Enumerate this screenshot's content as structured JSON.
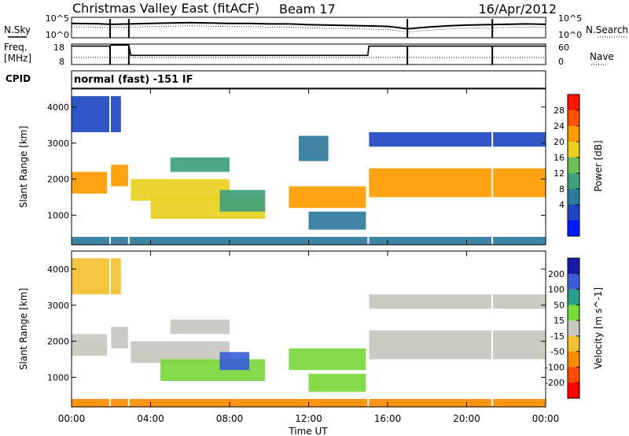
{
  "header": {
    "title": "Christmas Valley East (fitACF)",
    "beam": "Beam 17",
    "date": "16/Apr/2012",
    "mode": "normal (fast) -151 IF"
  },
  "side_labels": {
    "nsky": "N.Sky",
    "nsky_ticks": [
      "10^5",
      "10^0"
    ],
    "nsearch": "N.Search",
    "nsearch_ticks": [
      "10^5",
      "10^0"
    ],
    "freq_l1": "Freq.",
    "freq_l2": "[MHz]",
    "freq_ticks": [
      "18",
      "8"
    ],
    "nave": "Nave",
    "nave_ticks": [
      "60",
      "0"
    ],
    "cpid": "CPID"
  },
  "colors": {
    "power_scale": [
      "#0018ff",
      "#1f46c0",
      "#2f7a9a",
      "#3fa07a",
      "#6cbf55",
      "#e8d020",
      "#ff9a00",
      "#ff5500",
      "#ff1500"
    ],
    "velocity_scale": [
      "#1a1aa8",
      "#3b5ed8",
      "#2c9c8c",
      "#7ad83a",
      "#c8c8c0",
      "#f2c030",
      "#ff8c00",
      "#ff4a00",
      "#ff0000"
    ]
  },
  "chart_data": [
    {
      "type": "line",
      "name": "sky-noise",
      "x_unit": "hours UT",
      "x": [
        0,
        1.5,
        2,
        3,
        4,
        5,
        6,
        7,
        8,
        9,
        10,
        11,
        12,
        13,
        14,
        15,
        16,
        17,
        18,
        19,
        20,
        21,
        22,
        23,
        24
      ],
      "series": [
        {
          "values": [
            3.5,
            3.4,
            3.3,
            3.4,
            3.5,
            3.6,
            3.7,
            3.6,
            3.5,
            3.5,
            3.4,
            3.4,
            3.2,
            3.1,
            3.0,
            2.9,
            2.8,
            2.2,
            2.6,
            2.9,
            3.1,
            3.2,
            3.3,
            3.4,
            3.3
          ]
        }
      ],
      "ylim": [
        0,
        5
      ],
      "y_ticks": [
        "10^0",
        "10^5"
      ]
    },
    {
      "type": "line",
      "name": "frequency-nave",
      "x": [
        0,
        1.95,
        2.0,
        2.9,
        3.0,
        15.0,
        15.05,
        24
      ],
      "series": [
        {
          "values": [
            17,
            17,
            17.5,
            17.5,
            12.5,
            12.5,
            17,
            17
          ]
        }
      ],
      "ylim": [
        8,
        18
      ],
      "y_ticks": [
        "8",
        "18"
      ]
    },
    {
      "type": "heatmap",
      "name": "power",
      "xlabel": "",
      "ylabel": "Slant Range [km]",
      "colorbar_label": "Power [dB]",
      "xlim": [
        0,
        24
      ],
      "ylim": [
        180,
        4500
      ],
      "y_ticks": [
        1000,
        2000,
        3000,
        4000
      ],
      "colorbar_ticks": [
        "28",
        "24",
        "20",
        "16",
        "12",
        "8",
        "4"
      ],
      "colorbar_range": [
        0,
        32
      ],
      "regions": [
        {
          "t0": 0.0,
          "t1": 1.8,
          "r0": 1600,
          "r1": 2200,
          "level": 22
        },
        {
          "t0": 2.0,
          "t1": 2.9,
          "r0": 1800,
          "r1": 2400,
          "level": 24
        },
        {
          "t0": 3.0,
          "t1": 8.0,
          "r0": 1400,
          "r1": 2000,
          "level": 18
        },
        {
          "t0": 5.0,
          "t1": 8.0,
          "r0": 2200,
          "r1": 2600,
          "level": 14
        },
        {
          "t0": 4.0,
          "t1": 9.8,
          "r0": 900,
          "r1": 1500,
          "level": 20
        },
        {
          "t0": 7.5,
          "t1": 9.8,
          "r0": 1100,
          "r1": 1700,
          "level": 12
        },
        {
          "t0": 11.0,
          "t1": 14.9,
          "r0": 1200,
          "r1": 1800,
          "level": 22
        },
        {
          "t0": 12.0,
          "t1": 14.9,
          "r0": 600,
          "r1": 1100,
          "level": 10
        },
        {
          "t0": 11.5,
          "t1": 13.0,
          "r0": 2500,
          "r1": 3200,
          "level": 8
        },
        {
          "t0": 15.0,
          "t1": 24.0,
          "r0": 1500,
          "r1": 2300,
          "level": 22
        },
        {
          "t0": 15.0,
          "t1": 24.0,
          "r0": 2900,
          "r1": 3300,
          "level": 6
        },
        {
          "t0": 0.0,
          "t1": 2.5,
          "r0": 3300,
          "r1": 4300,
          "level": 7
        },
        {
          "t0": 0.0,
          "t1": 24.0,
          "r0": 180,
          "r1": 400,
          "level": 10
        }
      ]
    },
    {
      "type": "heatmap",
      "name": "velocity",
      "xlabel": "Time UT",
      "ylabel": "Slant Range [km]",
      "colorbar_label": "Velocity [m s^-1]",
      "xlim": [
        0,
        24
      ],
      "ylim": [
        180,
        4500
      ],
      "x_ticks": [
        "00:00",
        "04:00",
        "08:00",
        "12:00",
        "16:00",
        "20:00",
        "00:00"
      ],
      "y_ticks": [
        1000,
        2000,
        3000,
        4000
      ],
      "colorbar_ticks": [
        "200",
        "100",
        "50",
        "15",
        "-15",
        "-50",
        "-100",
        "-200"
      ],
      "regions": [
        {
          "t0": 0.0,
          "t1": 1.8,
          "r0": 1600,
          "r1": 2200,
          "level": 0
        },
        {
          "t0": 2.0,
          "t1": 2.9,
          "r0": 1800,
          "r1": 2400,
          "level": 0
        },
        {
          "t0": 3.0,
          "t1": 8.0,
          "r0": 1400,
          "r1": 2000,
          "level": 0
        },
        {
          "t0": 5.0,
          "t1": 8.0,
          "r0": 2200,
          "r1": 2600,
          "level": 0
        },
        {
          "t0": 4.5,
          "t1": 9.8,
          "r0": 900,
          "r1": 1500,
          "level": 35
        },
        {
          "t0": 7.5,
          "t1": 9.0,
          "r0": 1200,
          "r1": 1700,
          "level": 120
        },
        {
          "t0": 11.0,
          "t1": 14.9,
          "r0": 1200,
          "r1": 1800,
          "level": 30
        },
        {
          "t0": 12.0,
          "t1": 14.9,
          "r0": 600,
          "r1": 1100,
          "level": 25
        },
        {
          "t0": 15.0,
          "t1": 24.0,
          "r0": 1500,
          "r1": 2300,
          "level": 0
        },
        {
          "t0": 15.0,
          "t1": 24.0,
          "r0": 2900,
          "r1": 3300,
          "level": -5
        },
        {
          "t0": 0.0,
          "t1": 2.5,
          "r0": 3300,
          "r1": 4300,
          "level": -40
        },
        {
          "t0": 0.0,
          "t1": 24.0,
          "r0": 180,
          "r1": 400,
          "level": -60
        }
      ]
    }
  ]
}
